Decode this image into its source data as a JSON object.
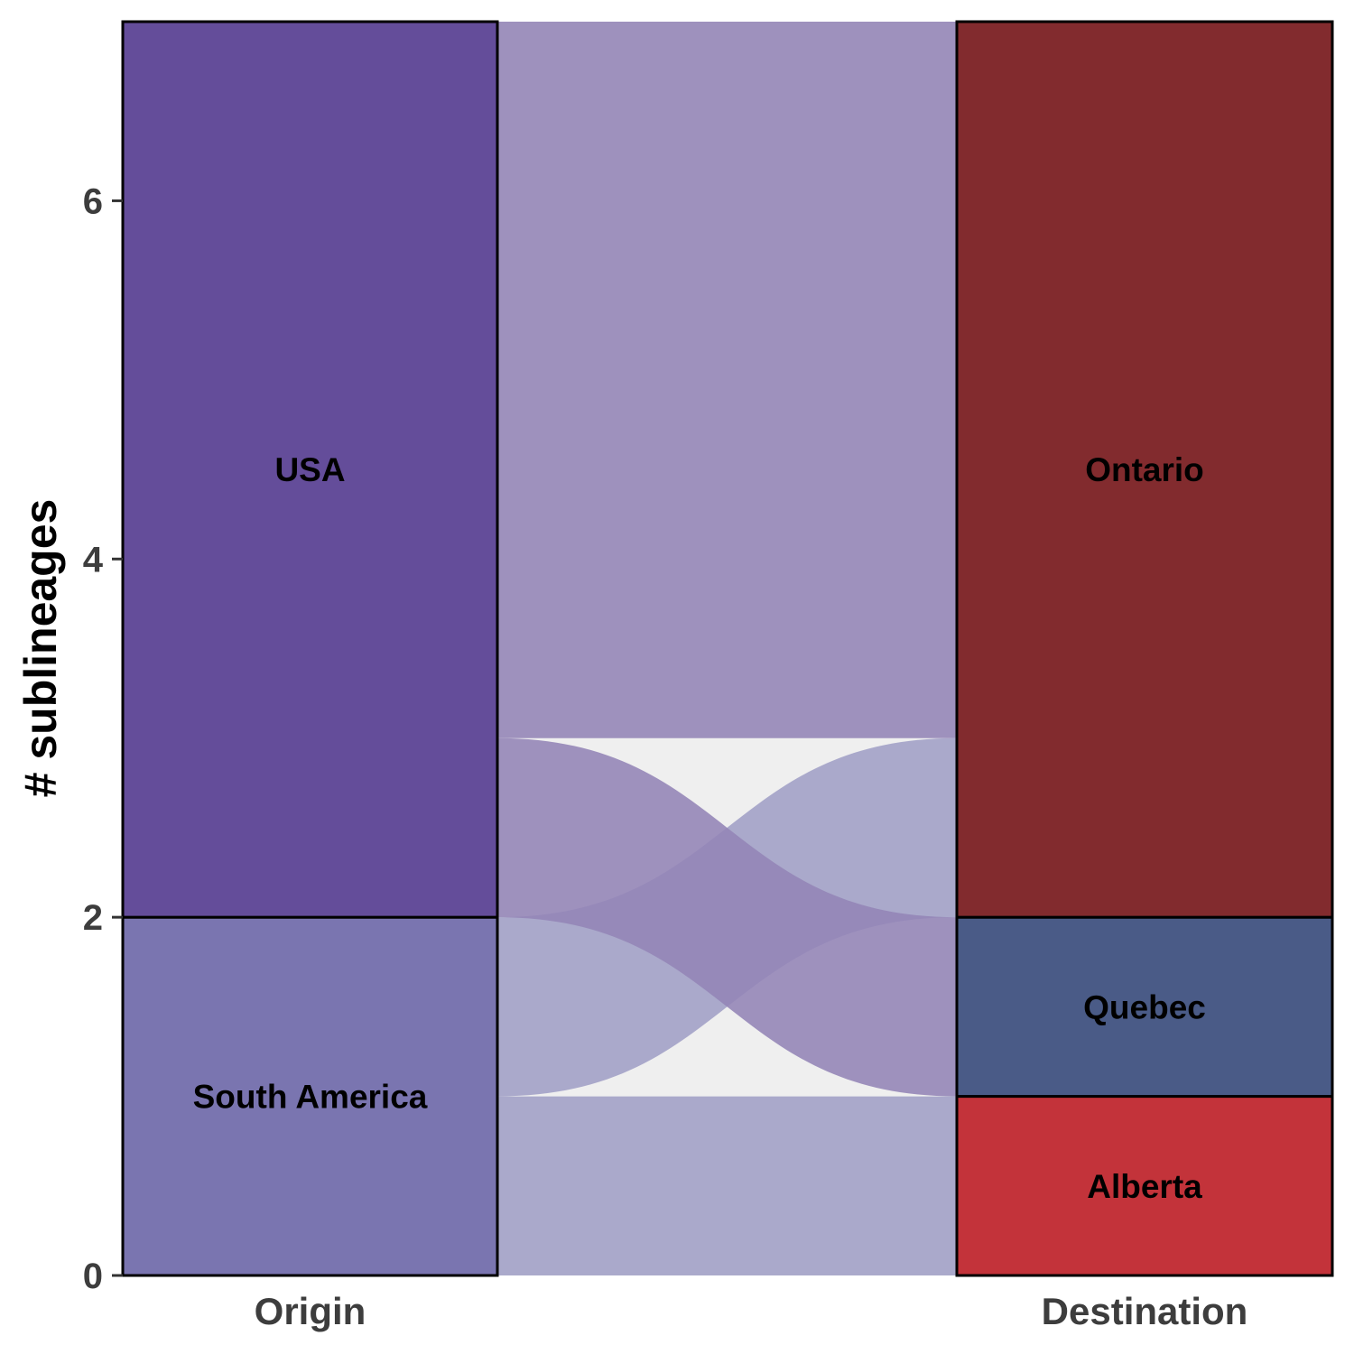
{
  "chart_data": {
    "type": "alluvial",
    "ylabel": "# sublineages",
    "ylim": [
      0,
      7
    ],
    "yticks": [
      0,
      2,
      4,
      6
    ],
    "axes": [
      "Origin",
      "Destination"
    ],
    "stacks": {
      "Origin": [
        {
          "name": "South America",
          "value": 2,
          "color": "#7a75b0"
        },
        {
          "name": "USA",
          "value": 5,
          "color": "#644d9a"
        }
      ],
      "Destination": [
        {
          "name": "Alberta",
          "value": 1,
          "color": "#c3333a"
        },
        {
          "name": "Quebec",
          "value": 1,
          "color": "#4a5b87"
        },
        {
          "name": "Ontario",
          "value": 5,
          "color": "#822b2e"
        }
      ]
    },
    "flows": [
      {
        "from": "South America",
        "to": "Alberta",
        "value": 1,
        "color": "#a19fc6"
      },
      {
        "from": "South America",
        "to": "Ontario",
        "value": 1,
        "color": "#a19fc6"
      },
      {
        "from": "USA",
        "to": "Quebec",
        "value": 1,
        "color": "#9384b6"
      },
      {
        "from": "USA",
        "to": "Ontario",
        "value": 4,
        "color": "#9384b6"
      }
    ],
    "flow_background": "#efefef"
  }
}
